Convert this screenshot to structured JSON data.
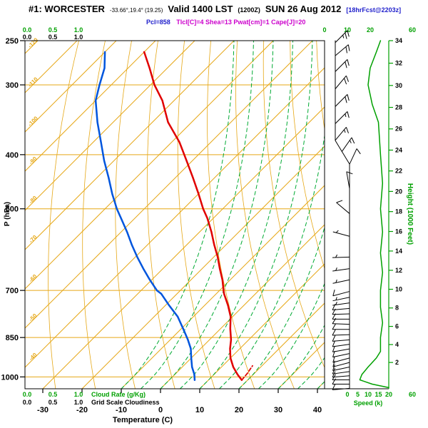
{
  "header": {
    "station": "#1: WORCESTER",
    "coords": "-33.66°,19.4° (19.25)",
    "valid_lst": "Valid 1400 LST",
    "valid_z": "(1200Z)",
    "valid_date": "SUN 26 Aug 2012",
    "tag": "[18hrFcst@2203z]",
    "idx_left": "Pcl=858",
    "idx_right": "Tlcl[C]=4 Shea=13 Pwat[cm]=1 Cape[J]=20"
  },
  "axes": {
    "pressure_label": "P (hPa)",
    "pressure_ticks": [
      "250",
      "300",
      "400",
      "500",
      "700",
      "850",
      "1000"
    ],
    "temp_label": "Temperature (C)",
    "temp_ticks": [
      "-30",
      "-20",
      "-10",
      "0",
      "10",
      "20",
      "30",
      "40"
    ],
    "height_label": "Height (1000 Feet)",
    "height_ticks": [
      "2",
      "4",
      "6",
      "8",
      "10",
      "12",
      "14",
      "16",
      "18",
      "20",
      "22",
      "24",
      "26",
      "28",
      "30",
      "32",
      "34"
    ],
    "speed_label": "Speed (k)",
    "speed_ticks": [
      "0",
      "5",
      "10",
      "15",
      "20"
    ],
    "speed_max": "60",
    "top_right_ticks": [
      "0",
      "10",
      "20"
    ],
    "cloud_ticks": [
      "0.0",
      "0.5",
      "1.0"
    ],
    "cloud_rate_label": "Cloud Rate (g/Kg)",
    "grid_cloud_label": "Grid Scale Cloudiness"
  },
  "colors": {
    "grid_orange": "#e6a817",
    "moist_green": "#00aa33",
    "axis_green": "#00a000",
    "temperature_red": "#e00000",
    "dewpoint_blue": "#0055dd",
    "magenta": "#cc00cc",
    "tag_blue": "#2222cc",
    "black": "#000000"
  },
  "chart_data": {
    "type": "line",
    "subtype": "skewt-log-p-sounding",
    "pressure_range_hpa": [
      250,
      1050
    ],
    "surface_temp_axis_c": [
      -30,
      40
    ],
    "grid": "skewed isotherms / dry adiabats (orange), moist adiabats dashed (green), isobars (orange)",
    "legend_position": "none",
    "temperature_c": [
      [
        1013,
        18.5
      ],
      [
        990,
        16
      ],
      [
        960,
        13
      ],
      [
        925,
        10
      ],
      [
        890,
        7.5
      ],
      [
        858,
        5.5
      ],
      [
        820,
        2.5
      ],
      [
        780,
        -0.5
      ],
      [
        745,
        -4
      ],
      [
        710,
        -8
      ],
      [
        700,
        -9
      ],
      [
        670,
        -12
      ],
      [
        640,
        -15.5
      ],
      [
        610,
        -19
      ],
      [
        580,
        -23
      ],
      [
        550,
        -27
      ],
      [
        520,
        -31.5
      ],
      [
        500,
        -35
      ],
      [
        470,
        -40
      ],
      [
        440,
        -45.5
      ],
      [
        410,
        -51.5
      ],
      [
        380,
        -58
      ],
      [
        350,
        -66
      ],
      [
        320,
        -73
      ],
      [
        300,
        -79
      ],
      [
        280,
        -84.5
      ],
      [
        262,
        -90
      ]
    ],
    "dewpoint_c": [
      [
        1013,
        6.5
      ],
      [
        990,
        5
      ],
      [
        960,
        2.5
      ],
      [
        925,
        0
      ],
      [
        890,
        -2.5
      ],
      [
        858,
        -5.5
      ],
      [
        820,
        -9.5
      ],
      [
        780,
        -14
      ],
      [
        745,
        -19
      ],
      [
        710,
        -24
      ],
      [
        700,
        -26
      ],
      [
        670,
        -30.5
      ],
      [
        640,
        -35
      ],
      [
        610,
        -39.5
      ],
      [
        580,
        -44
      ],
      [
        550,
        -48.5
      ],
      [
        520,
        -53.5
      ],
      [
        500,
        -57
      ],
      [
        470,
        -62
      ],
      [
        440,
        -67
      ],
      [
        410,
        -72.5
      ],
      [
        380,
        -78
      ],
      [
        350,
        -84
      ],
      [
        320,
        -90
      ],
      [
        300,
        -93
      ],
      [
        280,
        -96
      ],
      [
        262,
        -100
      ]
    ],
    "parcel_c": [
      [
        1013,
        18.5
      ],
      [
        985,
        18.2
      ],
      [
        955,
        17.6
      ]
    ],
    "wind_barbs": [
      [
        1048,
        265,
        8
      ],
      [
        1030,
        270,
        10
      ],
      [
        1012,
        270,
        10
      ],
      [
        995,
        265,
        12
      ],
      [
        978,
        262,
        10
      ],
      [
        960,
        258,
        10
      ],
      [
        942,
        255,
        12
      ],
      [
        925,
        255,
        10
      ],
      [
        908,
        258,
        10
      ],
      [
        891,
        260,
        10
      ],
      [
        874,
        262,
        8
      ],
      [
        858,
        265,
        10
      ],
      [
        840,
        268,
        8
      ],
      [
        822,
        270,
        10
      ],
      [
        805,
        272,
        8
      ],
      [
        788,
        270,
        10
      ],
      [
        771,
        268,
        8
      ],
      [
        754,
        265,
        8
      ],
      [
        737,
        262,
        6
      ],
      [
        720,
        258,
        6
      ],
      [
        703,
        255,
        8
      ],
      [
        670,
        258,
        5
      ],
      [
        640,
        262,
        5
      ],
      [
        610,
        268,
        5
      ],
      [
        560,
        285,
        5
      ],
      [
        510,
        310,
        8
      ],
      [
        460,
        350,
        10
      ],
      [
        416,
        25,
        12
      ],
      [
        395,
        35,
        15
      ],
      [
        377,
        40,
        15
      ],
      [
        352,
        45,
        15
      ],
      [
        328,
        45,
        18
      ],
      [
        305,
        40,
        20
      ],
      [
        284,
        45,
        20
      ],
      [
        266,
        50,
        22
      ],
      [
        252,
        45,
        25
      ]
    ],
    "speed_profile": [
      [
        1045,
        20
      ],
      [
        1030,
        12
      ],
      [
        1012,
        6
      ],
      [
        990,
        7
      ],
      [
        960,
        10
      ],
      [
        925,
        14
      ],
      [
        900,
        16
      ],
      [
        850,
        16
      ],
      [
        800,
        17
      ],
      [
        750,
        16
      ],
      [
        700,
        16
      ],
      [
        650,
        17
      ],
      [
        600,
        16
      ],
      [
        550,
        17
      ],
      [
        500,
        16
      ],
      [
        450,
        17
      ],
      [
        400,
        16
      ],
      [
        350,
        15
      ],
      [
        325,
        12
      ],
      [
        300,
        10
      ],
      [
        280,
        11
      ],
      [
        262,
        14
      ],
      [
        250,
        16
      ]
    ]
  }
}
